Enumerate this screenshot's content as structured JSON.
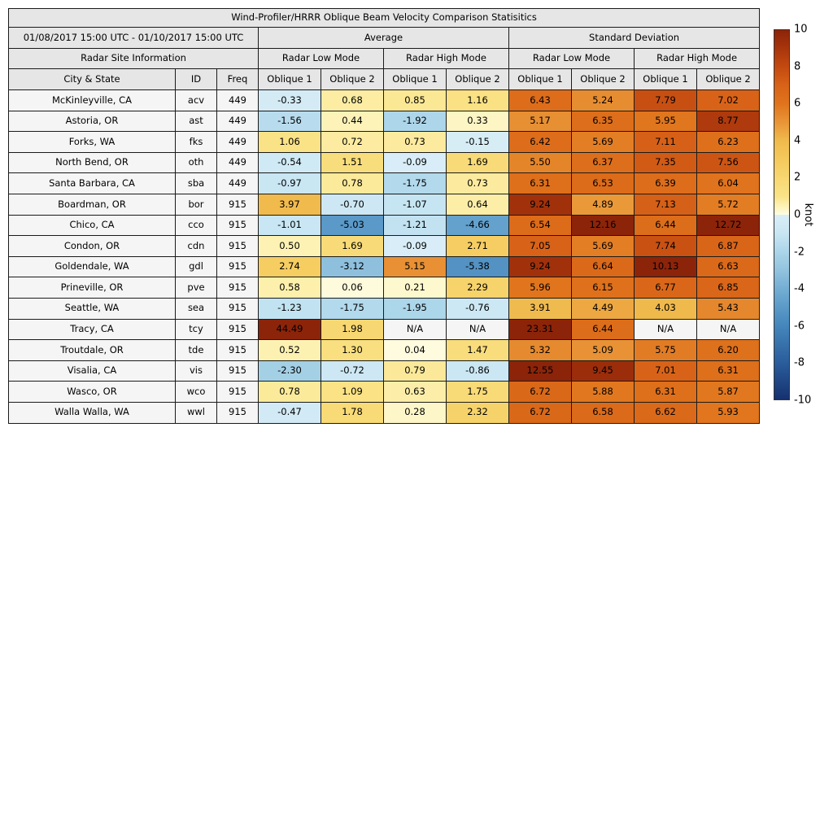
{
  "title": "Wind-Profiler/HRRR Oblique Beam Velocity Comparison Statisitics",
  "header": {
    "date_range": "01/08/2017 15:00 UTC - 01/10/2017 15:00 UTC",
    "average_label": "Average",
    "std_label": "Standard Deviation",
    "site_info_label": "Radar Site Information",
    "mode_labels": [
      "Radar Low Mode",
      "Radar High Mode",
      "Radar Low Mode",
      "Radar High Mode"
    ],
    "col_labels": [
      "City & State",
      "ID",
      "Freq",
      "Oblique 1",
      "Oblique 2",
      "Oblique 1",
      "Oblique 2",
      "Oblique 1",
      "Oblique 2",
      "Oblique 1",
      "Oblique 2"
    ]
  },
  "na_text": "N/A",
  "chart_data": {
    "type": "heatmap",
    "title": "Wind-Profiler/HRRR Oblique Beam Velocity Comparison Statisitics",
    "unit": "knot",
    "value_range": [
      -10,
      10
    ],
    "column_groups": [
      "Average / Radar Low Mode",
      "Average / Radar High Mode",
      "Standard Deviation / Radar Low Mode",
      "Standard Deviation / Radar High Mode"
    ],
    "value_columns": [
      "Avg Low Oblique 1",
      "Avg Low Oblique 2",
      "Avg High Oblique 1",
      "Avg High Oblique 2",
      "SD Low Oblique 1",
      "SD Low Oblique 2",
      "SD High Oblique 1",
      "SD High Oblique 2"
    ],
    "rows": [
      {
        "city": "McKinleyville, CA",
        "id": "acv",
        "freq": "449",
        "values": [
          "-0.33",
          "0.68",
          "0.85",
          "1.16",
          "6.43",
          "5.24",
          "7.79",
          "7.02"
        ]
      },
      {
        "city": "Astoria, OR",
        "id": "ast",
        "freq": "449",
        "values": [
          "-1.56",
          "0.44",
          "-1.92",
          "0.33",
          "5.17",
          "6.35",
          "5.95",
          "8.77"
        ]
      },
      {
        "city": "Forks, WA",
        "id": "fks",
        "freq": "449",
        "values": [
          "1.06",
          "0.72",
          "0.73",
          "-0.15",
          "6.42",
          "5.69",
          "7.11",
          "6.23"
        ]
      },
      {
        "city": "North Bend, OR",
        "id": "oth",
        "freq": "449",
        "values": [
          "-0.54",
          "1.51",
          "-0.09",
          "1.69",
          "5.50",
          "6.37",
          "7.35",
          "7.56"
        ]
      },
      {
        "city": "Santa Barbara, CA",
        "id": "sba",
        "freq": "449",
        "values": [
          "-0.97",
          "0.78",
          "-1.75",
          "0.73",
          "6.31",
          "6.53",
          "6.39",
          "6.04"
        ]
      },
      {
        "city": "Boardman, OR",
        "id": "bor",
        "freq": "915",
        "values": [
          "3.97",
          "-0.70",
          "-1.07",
          "0.64",
          "9.24",
          "4.89",
          "7.13",
          "5.72"
        ]
      },
      {
        "city": "Chico, CA",
        "id": "cco",
        "freq": "915",
        "values": [
          "-1.01",
          "-5.03",
          "-1.21",
          "-4.66",
          "6.54",
          "12.16",
          "6.44",
          "12.72"
        ]
      },
      {
        "city": "Condon, OR",
        "id": "cdn",
        "freq": "915",
        "values": [
          "0.50",
          "1.69",
          "-0.09",
          "2.71",
          "7.05",
          "5.69",
          "7.74",
          "6.87"
        ]
      },
      {
        "city": "Goldendale, WA",
        "id": "gdl",
        "freq": "915",
        "values": [
          "2.74",
          "-3.12",
          "5.15",
          "-5.38",
          "9.24",
          "6.64",
          "10.13",
          "6.63"
        ]
      },
      {
        "city": "Prineville, OR",
        "id": "pve",
        "freq": "915",
        "values": [
          "0.58",
          "0.06",
          "0.21",
          "2.29",
          "5.96",
          "6.15",
          "6.77",
          "6.85"
        ]
      },
      {
        "city": "Seattle, WA",
        "id": "sea",
        "freq": "915",
        "values": [
          "-1.23",
          "-1.75",
          "-1.95",
          "-0.76",
          "3.91",
          "4.49",
          "4.03",
          "5.43"
        ]
      },
      {
        "city": "Tracy, CA",
        "id": "tcy",
        "freq": "915",
        "values": [
          "44.49",
          "1.98",
          "N/A",
          "N/A",
          "23.31",
          "6.44",
          "N/A",
          "N/A"
        ]
      },
      {
        "city": "Troutdale, OR",
        "id": "tde",
        "freq": "915",
        "values": [
          "0.52",
          "1.30",
          "0.04",
          "1.47",
          "5.32",
          "5.09",
          "5.75",
          "6.20"
        ]
      },
      {
        "city": "Visalia, CA",
        "id": "vis",
        "freq": "915",
        "values": [
          "-2.30",
          "-0.72",
          "0.79",
          "-0.86",
          "12.55",
          "9.45",
          "7.01",
          "6.31"
        ]
      },
      {
        "city": "Wasco, OR",
        "id": "wco",
        "freq": "915",
        "values": [
          "0.78",
          "1.09",
          "0.63",
          "1.75",
          "6.72",
          "5.88",
          "6.31",
          "5.87"
        ]
      },
      {
        "city": "Walla Walla, WA",
        "id": "wwl",
        "freq": "915",
        "values": [
          "-0.47",
          "1.78",
          "0.28",
          "2.32",
          "6.72",
          "6.58",
          "6.62",
          "5.93"
        ]
      }
    ]
  },
  "colorbar": {
    "label": "knot",
    "ticks": [
      "10",
      "8",
      "6",
      "4",
      "2",
      "0",
      "-2",
      "-4",
      "-6",
      "-8",
      "-10"
    ],
    "vmin": -10,
    "vmax": 10,
    "scale": [
      [
        -10,
        "#16316f"
      ],
      [
        -8,
        "#2a5d9c"
      ],
      [
        -6,
        "#4586bc"
      ],
      [
        -5,
        "#5b9ac8"
      ],
      [
        -4,
        "#74aed3"
      ],
      [
        -3,
        "#92c3de"
      ],
      [
        -2,
        "#abd5e9"
      ],
      [
        -1,
        "#c8e6f3"
      ],
      [
        -0.001,
        "#daeef7"
      ],
      [
        0,
        "#fefce2"
      ],
      [
        0.5,
        "#fdf2b3"
      ],
      [
        1,
        "#fae387"
      ],
      [
        2,
        "#f7d771"
      ],
      [
        3,
        "#f4c95c"
      ],
      [
        4,
        "#f0ba4d"
      ],
      [
        5,
        "#e99537"
      ],
      [
        6,
        "#e0741d"
      ],
      [
        7,
        "#d86318"
      ],
      [
        8,
        "#c44a10"
      ],
      [
        9,
        "#a8350c"
      ],
      [
        10,
        "#8c2409"
      ]
    ]
  },
  "colors": {
    "header_bg": "#e6e6e6",
    "label_bg": "#f5f5f5",
    "na_bg": "#f5f5f5",
    "border": "#1a1a1a",
    "text": "#000000"
  }
}
